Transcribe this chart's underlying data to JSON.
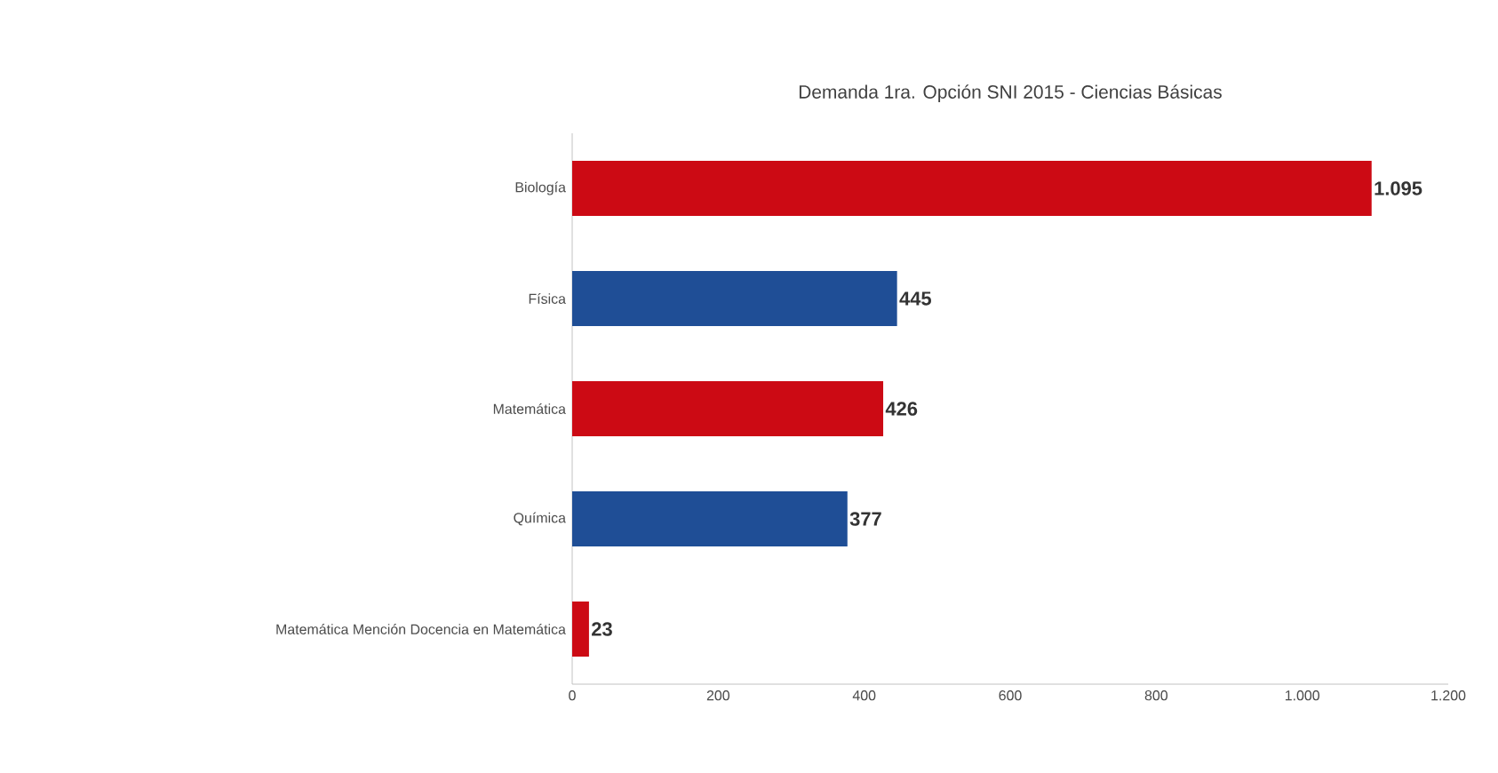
{
  "chart_data": {
    "type": "bar",
    "orientation": "horizontal",
    "title": "Demanda 1ra. Opción SNI 2015 - Ciencias Básicas",
    "categories": [
      "Biología",
      "Física",
      "Matemática",
      "Química",
      "Matemática Mención Docencia en Matemática"
    ],
    "values": [
      1095,
      445,
      426,
      377,
      23
    ],
    "colors": [
      "#cc0a14",
      "#1f4e96",
      "#cc0a14",
      "#1f4e96",
      "#cc0a14"
    ],
    "value_labels": [
      "1.095",
      "445",
      "426",
      "377",
      "23"
    ],
    "xlim": [
      0,
      1200
    ],
    "xticks": [
      0,
      200,
      400,
      600,
      800,
      {
        "value": 1000,
        "label": "1.000"
      },
      {
        "value": 1200,
        "label": "1.200"
      }
    ]
  }
}
